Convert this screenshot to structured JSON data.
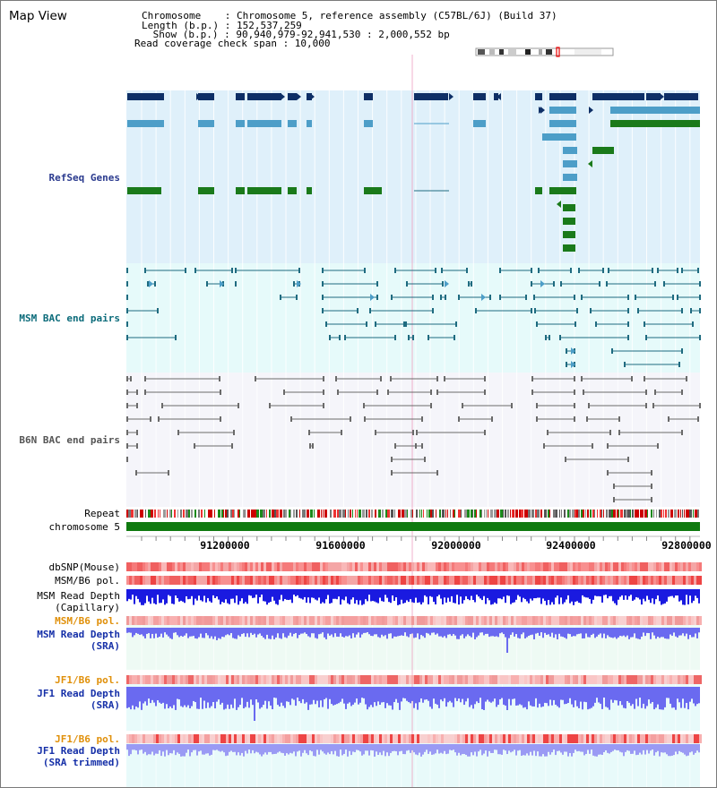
{
  "title": "Map View",
  "header": {
    "chromosome": "Chromosome    : Chromosome 5, reference assembly (C57BL/6J) (Build 37)",
    "length": "Length (b.p.) : 152,537,259",
    "show": " Show (b.p.) : 90,940,979-92,941,530 : 2,000,552 bp",
    "coverage": "Read coverage check span : 10,000"
  },
  "labels": {
    "refseq": "RefSeq Genes",
    "msm_bac": "MSM BAC end pairs",
    "b6n_bac": "B6N BAC end pairs",
    "repeat": "Repeat",
    "chromosome": "chromosome 5",
    "dbsnp": "dbSNP(Mouse)",
    "msm_b6_pol_1": "MSM/B6 pol.",
    "msm_depth_cap": "MSM Read Depth",
    "msm_depth_cap_sub": "(Capillary)",
    "msm_b6_pol_2": "MSM/B6 pol.",
    "msm_depth_sra": "MSM Read Depth",
    "msm_depth_sra_sub": "(SRA)",
    "jf1_b6_pol_1": "JF1/B6 pol.",
    "jf1_depth_sra": "JF1 Read Depth",
    "jf1_depth_sra_sub": "(SRA)",
    "jf1_b6_pol_2": "JF1/B6 pol.",
    "jf1_depth_trim": "JF1 Read Depth",
    "jf1_depth_trim_sub": "(SRA trimmed)"
  },
  "axis": {
    "ticks": [
      "91200000",
      "91600000",
      "92000000",
      "92400000",
      "92800000"
    ]
  },
  "colors": {
    "refseq_bg": "#dff0fa",
    "msm_bac_bg": "#e6fafa",
    "b6n_bac_bg": "#f5f5fa",
    "depth_bg": "#eefaf4",
    "dark_navy": "#0e2f66",
    "steel_blue": "#4d9ec8",
    "green": "#1a7a1a",
    "teal_line": "#1f6b80",
    "gray_line": "#6a6a6a",
    "label_navy": "#2a3a8e",
    "label_teal": "#0b6b7a",
    "label_gray": "#555555",
    "label_orange": "#e0900a",
    "label_blue": "#1630a8",
    "depth_blue": "#1a1ae0",
    "depth_light": "#6a6af0",
    "depth_pale": "#9a9af4"
  }
}
